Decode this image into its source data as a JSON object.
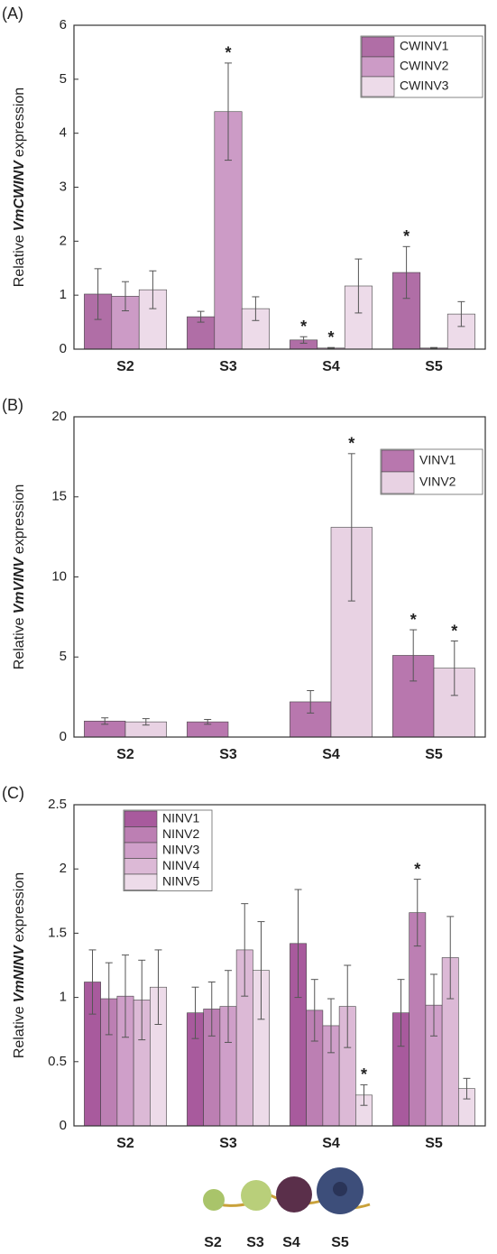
{
  "chart_data": [
    {
      "type": "bar",
      "panel_label": "(A)",
      "y_label_prefix": "Relative",
      "y_label_gene": "VmCWINV",
      "y_label_suffix": "expression",
      "categories": [
        "S2",
        "S3",
        "S4",
        "S5"
      ],
      "series": [
        {
          "name": "CWINV1",
          "color": "#b06ea6",
          "values": [
            1.02,
            0.6,
            0.17,
            1.42
          ],
          "errors": [
            0.47,
            0.1,
            0.06,
            0.48
          ],
          "significance": [
            null,
            null,
            "*",
            "*"
          ]
        },
        {
          "name": "CWINV2",
          "color": "#cc9bc6",
          "values": [
            0.98,
            4.4,
            0.02,
            0.02
          ],
          "errors": [
            0.27,
            0.9,
            0.01,
            0.01
          ],
          "significance": [
            null,
            "*",
            "*",
            null
          ]
        },
        {
          "name": "CWINV3",
          "color": "#eddbe9",
          "values": [
            1.1,
            0.75,
            1.17,
            0.65
          ],
          "errors": [
            0.35,
            0.22,
            0.5,
            0.23
          ],
          "significance": [
            null,
            null,
            null,
            null
          ]
        }
      ],
      "ylim": [
        0,
        6
      ],
      "yticks": [
        0,
        1,
        2,
        3,
        4,
        5,
        6
      ],
      "legend": "upper right"
    },
    {
      "type": "bar",
      "panel_label": "(B)",
      "y_label_prefix": "Relative",
      "y_label_gene": "VmVINV",
      "y_label_suffix": "expression",
      "categories": [
        "S2",
        "S3",
        "S4",
        "S5"
      ],
      "series": [
        {
          "name": "VINV1",
          "color": "#b877ae",
          "values": [
            1.0,
            0.95,
            2.2,
            5.1
          ],
          "errors": [
            0.2,
            0.15,
            0.7,
            1.6
          ],
          "significance": [
            null,
            null,
            null,
            "*"
          ]
        },
        {
          "name": "VINV2",
          "color": "#e8d2e3",
          "values": [
            0.95,
            0,
            13.1,
            4.3
          ],
          "errors": [
            0.2,
            0,
            4.6,
            1.7
          ],
          "significance": [
            null,
            null,
            "*",
            "*"
          ]
        }
      ],
      "ylim": [
        0,
        20
      ],
      "yticks": [
        0,
        5,
        10,
        15,
        20
      ],
      "legend": "upper right"
    },
    {
      "type": "bar",
      "panel_label": "(C)",
      "y_label_prefix": "Relative",
      "y_label_gene": "VmNINV",
      "y_label_suffix": "expression",
      "categories": [
        "S2",
        "S3",
        "S4",
        "S5"
      ],
      "series": [
        {
          "name": "NINV1",
          "color": "#a85a9d",
          "values": [
            1.12,
            0.88,
            1.42,
            0.88
          ],
          "errors": [
            0.25,
            0.2,
            0.42,
            0.26
          ],
          "significance": [
            null,
            null,
            null,
            null
          ]
        },
        {
          "name": "NINV2",
          "color": "#bc7fb3",
          "values": [
            0.99,
            0.91,
            0.9,
            1.66
          ],
          "errors": [
            0.28,
            0.21,
            0.24,
            0.26
          ],
          "significance": [
            null,
            null,
            null,
            "*"
          ]
        },
        {
          "name": "NINV3",
          "color": "#cf9fc9",
          "values": [
            1.01,
            0.93,
            0.78,
            0.94
          ],
          "errors": [
            0.32,
            0.28,
            0.21,
            0.24
          ],
          "significance": [
            null,
            null,
            null,
            null
          ]
        },
        {
          "name": "NINV4",
          "color": "#dcb9d6",
          "values": [
            0.98,
            1.37,
            0.93,
            1.31
          ],
          "errors": [
            0.31,
            0.36,
            0.32,
            0.32
          ],
          "significance": [
            null,
            null,
            null,
            null
          ]
        },
        {
          "name": "NINV5",
          "color": "#eddbe9",
          "values": [
            1.08,
            1.21,
            0.24,
            0.29
          ],
          "errors": [
            0.29,
            0.38,
            0.08,
            0.08
          ],
          "significance": [
            null,
            null,
            "*",
            null
          ]
        }
      ],
      "ylim": [
        0,
        2.5
      ],
      "yticks": [
        0,
        0.5,
        1,
        1.5,
        2,
        2.5
      ],
      "legend": "upper left"
    }
  ],
  "fruit_labels": [
    "S2",
    "S3",
    "S4",
    "S5"
  ]
}
